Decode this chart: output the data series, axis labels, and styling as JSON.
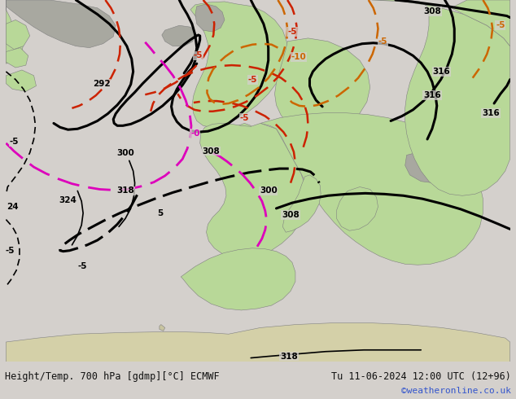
{
  "title_left": "Height/Temp. 700 hPa [gdmp][°C] ECMWF",
  "title_right": "Tu 11-06-2024 12:00 UTC (12+96)",
  "watermark": "©weatheronline.co.uk",
  "fig_width": 6.34,
  "fig_height": 4.9,
  "dpi": 100,
  "bg_color": "#d4d0cc",
  "land_green": "#b8d898",
  "land_gray": "#a8a8a0",
  "title_color": "#111111",
  "watermark_color": "#3355cc",
  "black_lw": 2.2,
  "black_lw_thin": 1.2,
  "red_lw": 1.8,
  "pink_lw": 2.0,
  "orange_lw": 1.8
}
